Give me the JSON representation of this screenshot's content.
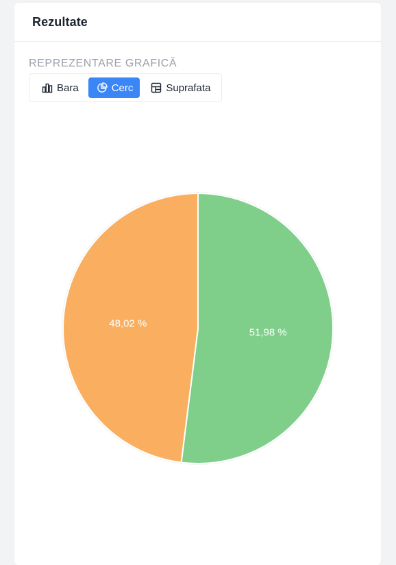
{
  "card": {
    "title": "Rezultate"
  },
  "section": {
    "label": "REPREZENTARE GRAFICĂ"
  },
  "chart_type_buttons": [
    {
      "label": "Bara",
      "icon": "bar-chart-icon",
      "active": false
    },
    {
      "label": "Cerc",
      "icon": "pie-chart-icon",
      "active": true
    },
    {
      "label": "Suprafata",
      "icon": "area-chart-icon",
      "active": false
    }
  ],
  "colors": {
    "accent": "#3b86f6",
    "green": "#7fcf8b",
    "orange": "#f9af5f"
  },
  "chart_data": {
    "type": "pie",
    "slices": [
      {
        "value": 51.98,
        "label": "51,98 %",
        "color": "#7fcf8b"
      },
      {
        "value": 48.02,
        "label": "48,02 %",
        "color": "#f9af5f"
      }
    ]
  }
}
